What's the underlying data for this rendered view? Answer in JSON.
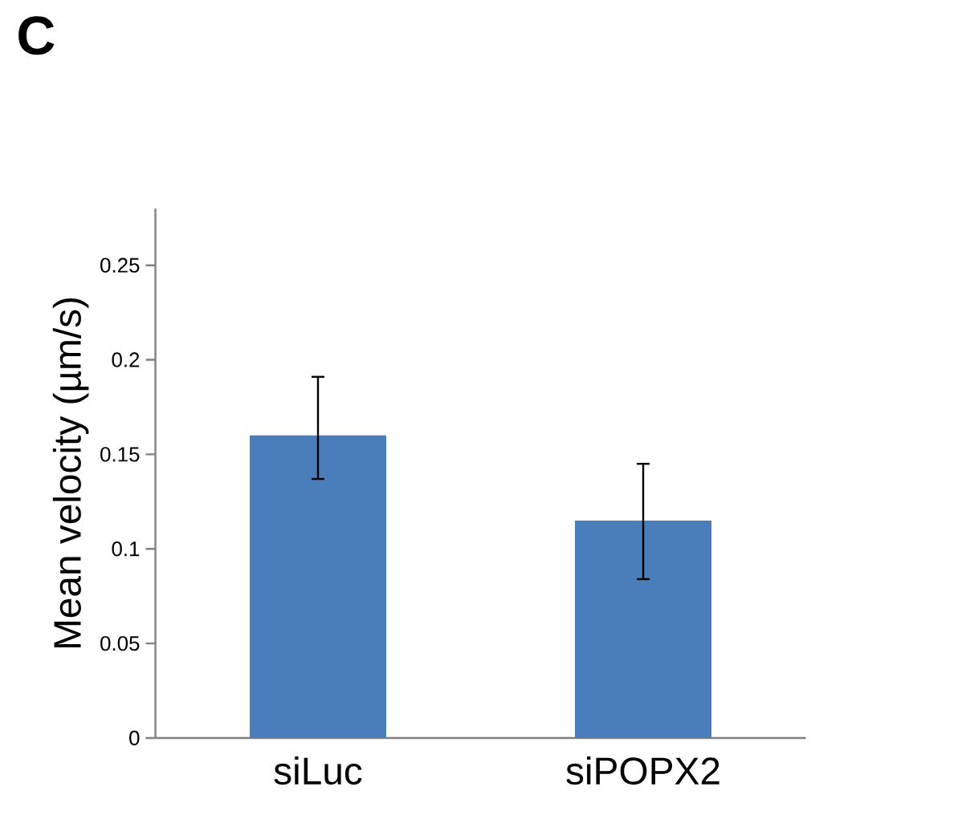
{
  "chart_data": {
    "type": "bar",
    "title": "C",
    "ylabel": "Mean velocity (µm/s)",
    "categories": [
      "siLuc",
      "siPOPX2"
    ],
    "values": [
      0.16,
      0.115
    ],
    "errors": [
      [
        0.137,
        0.191
      ],
      [
        0.084,
        0.145
      ]
    ],
    "color": "#4a7ebb",
    "ylim": [
      0,
      0.28
    ],
    "yticks": [
      0,
      0.05,
      0.1,
      0.15,
      0.2,
      0.25
    ],
    "grid": false
  }
}
